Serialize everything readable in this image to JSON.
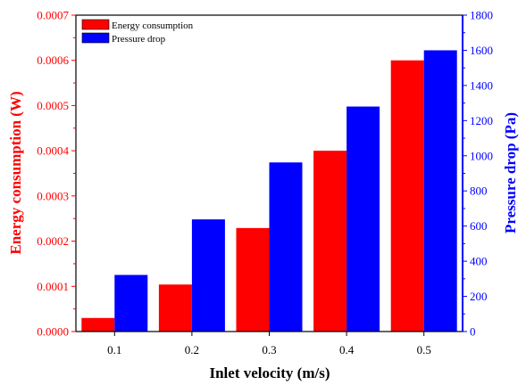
{
  "chart_data": {
    "type": "bar",
    "title": "",
    "xlabel": "Inlet velocity (m/s)",
    "categories": [
      "0.1",
      "0.2",
      "0.3",
      "0.4",
      "0.5"
    ],
    "series": [
      {
        "name": "Energy consumption",
        "axis": "left",
        "color": "#ff0000",
        "values": [
          3e-05,
          0.000104,
          0.000229,
          0.0004,
          0.0006
        ]
      },
      {
        "name": "Pressure drop",
        "axis": "right",
        "color": "#0000ff",
        "values": [
          322,
          638,
          962,
          1280,
          1600
        ]
      }
    ],
    "y_left": {
      "label": "Energy consumption (W)",
      "color": "#ff0000",
      "ylim": [
        0,
        0.0007
      ],
      "ticks": [
        "0.0000",
        "0.0001",
        "0.0002",
        "0.0003",
        "0.0004",
        "0.0005",
        "0.0006",
        "0.0007"
      ]
    },
    "y_right": {
      "label": "Pressure drop (Pa)",
      "color": "#0000ff",
      "ylim": [
        0,
        1800
      ],
      "ticks": [
        "0",
        "200",
        "400",
        "600",
        "800",
        "1000",
        "1200",
        "1400",
        "1600",
        "1800"
      ]
    },
    "legend": {
      "position": "top-left"
    },
    "grid": false
  }
}
